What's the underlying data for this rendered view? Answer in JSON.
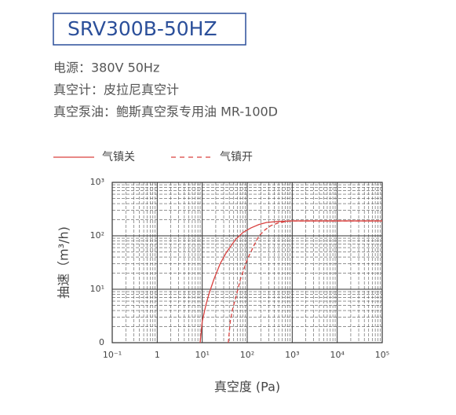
{
  "header": {
    "model": "SRV300B-50HZ",
    "specs": [
      "电源：380V 50Hz",
      "真空计：皮拉尼真空计",
      "真空泵油：鲍斯真空泵专用油 MR-100D"
    ]
  },
  "chart_data": {
    "type": "line",
    "xlabel": "真空度 (Pa)",
    "ylabel": "抽速（m³/h)",
    "xscale": "log",
    "yscale": "log",
    "xlim": [
      0.1,
      100000
    ],
    "ylim": [
      1,
      1000
    ],
    "xticks": [
      {
        "value": 0.1,
        "label": "10⁻¹"
      },
      1,
      {
        "value": 10,
        "label": "10¹"
      },
      {
        "value": 100,
        "label": "10²"
      },
      {
        "value": 1000,
        "label": "10³"
      },
      {
        "value": 10000,
        "label": "10⁴"
      },
      {
        "value": 100000,
        "label": "10⁵"
      }
    ],
    "yticks": [
      {
        "value": 1,
        "label": "0"
      },
      {
        "value": 10,
        "label": "10¹"
      },
      {
        "value": 100,
        "label": "10²"
      },
      {
        "value": 1000,
        "label": "10³"
      }
    ],
    "grid": true,
    "series": [
      {
        "name": "气镇关",
        "color": "#d9413f",
        "dash": "solid",
        "x": [
          9,
          10,
          12,
          14,
          18,
          25,
          35,
          55,
          80,
          120,
          180,
          270,
          500,
          1000,
          10000,
          100000
        ],
        "values": [
          1,
          2.5,
          5,
          8,
          15,
          30,
          50,
          85,
          115,
          140,
          162,
          178,
          186,
          190,
          190,
          190
        ]
      },
      {
        "name": "气镇开",
        "color": "#d9413f",
        "dash": "dashed",
        "x": [
          38,
          42,
          48,
          55,
          70,
          100,
          140,
          183,
          250,
          335,
          500,
          920,
          10000,
          100000
        ],
        "values": [
          1,
          2.5,
          4.5,
          6.7,
          15,
          36,
          65,
          100,
          130,
          155,
          175,
          190,
          190,
          190
        ]
      }
    ]
  }
}
